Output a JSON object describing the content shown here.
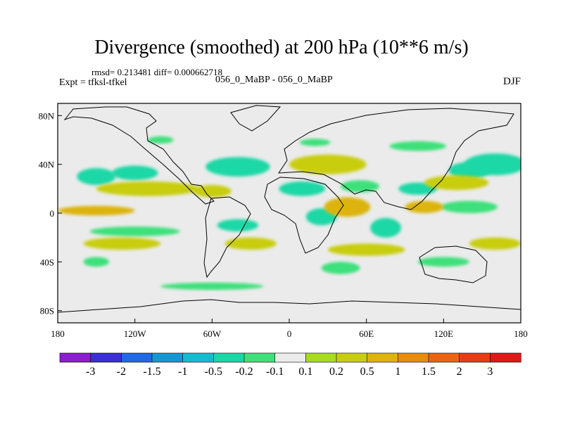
{
  "header": {
    "title": "Divergence (smoothed) at 200 hPa (10**6 m/s)",
    "stats": "rmsd= 0.213481 diff= 0.000662718",
    "expt": "Expt = tfksl-tfkel",
    "case": "056_0_MaBP - 056_0_MaBP",
    "season": "DJF"
  },
  "chart_data": {
    "type": "heatmap",
    "title": "Divergence (smoothed) at 200 hPa (10**6 m/s)",
    "xlabel": "",
    "ylabel": "",
    "xlim": [
      -180,
      180
    ],
    "ylim": [
      -90,
      90
    ],
    "x_ticks": [
      {
        "value": -180,
        "label": "180"
      },
      {
        "value": -120,
        "label": "120W"
      },
      {
        "value": -60,
        "label": "60W"
      },
      {
        "value": 0,
        "label": "0"
      },
      {
        "value": 60,
        "label": "60E"
      },
      {
        "value": 120,
        "label": "120E"
      },
      {
        "value": 180,
        "label": "180"
      }
    ],
    "y_ticks": [
      {
        "value": 80,
        "label": "80N"
      },
      {
        "value": 40,
        "label": "40N"
      },
      {
        "value": 0,
        "label": "0"
      },
      {
        "value": -40,
        "label": "40S"
      },
      {
        "value": -80,
        "label": "80S"
      }
    ],
    "colorbar": {
      "labels": [
        "-3",
        "-2",
        "-1.5",
        "-1",
        "-0.5",
        "-0.2",
        "-0.1",
        "0.1",
        "0.2",
        "0.5",
        "1",
        "1.5",
        "2",
        "3"
      ],
      "colors": [
        "#8c1ed2",
        "#3a2fd8",
        "#2068e8",
        "#1597d6",
        "#14bcd0",
        "#1ad7a6",
        "#3ee07a",
        "#ebebeb",
        "#a8dc1e",
        "#c8cd10",
        "#dcb40c",
        "#e88c0a",
        "#ec6410",
        "#e83c14",
        "#e01818"
      ]
    },
    "blobs": [
      {
        "lon": -150,
        "lat": 30,
        "rx": 15,
        "ry": 7,
        "value": -0.5
      },
      {
        "lon": -120,
        "lat": 33,
        "rx": 18,
        "ry": 6,
        "value": -0.3
      },
      {
        "lon": -100,
        "lat": 60,
        "rx": 10,
        "ry": 3,
        "value": -0.2
      },
      {
        "lon": -40,
        "lat": 38,
        "rx": 25,
        "ry": 8,
        "value": -0.3
      },
      {
        "lon": 20,
        "lat": 58,
        "rx": 12,
        "ry": 3,
        "value": -0.2
      },
      {
        "lon": 100,
        "lat": 55,
        "rx": 22,
        "ry": 4,
        "value": -0.2
      },
      {
        "lon": 160,
        "lat": 40,
        "rx": 24,
        "ry": 9,
        "value": -0.5
      },
      {
        "lon": 140,
        "lat": 35,
        "rx": 16,
        "ry": 7,
        "value": -0.3
      },
      {
        "lon": 10,
        "lat": 20,
        "rx": 18,
        "ry": 6,
        "value": -0.3
      },
      {
        "lon": 55,
        "lat": 22,
        "rx": 15,
        "ry": 5,
        "value": -0.2
      },
      {
        "lon": 100,
        "lat": 20,
        "rx": 15,
        "ry": 5,
        "value": -0.3
      },
      {
        "lon": 140,
        "lat": 5,
        "rx": 22,
        "ry": 5,
        "value": -0.2
      },
      {
        "lon": 25,
        "lat": -3,
        "rx": 12,
        "ry": 7,
        "value": -0.5
      },
      {
        "lon": 75,
        "lat": -12,
        "rx": 12,
        "ry": 8,
        "value": -0.5
      },
      {
        "lon": -120,
        "lat": -15,
        "rx": 35,
        "ry": 4,
        "value": -0.2
      },
      {
        "lon": -40,
        "lat": -10,
        "rx": 16,
        "ry": 5,
        "value": -0.3
      },
      {
        "lon": -150,
        "lat": -40,
        "rx": 10,
        "ry": 4,
        "value": -0.2
      },
      {
        "lon": -60,
        "lat": -60,
        "rx": 40,
        "ry": 3,
        "value": -0.2
      },
      {
        "lon": 40,
        "lat": -45,
        "rx": 15,
        "ry": 5,
        "value": -0.2
      },
      {
        "lon": 120,
        "lat": -40,
        "rx": 20,
        "ry": 4,
        "value": -0.2
      },
      {
        "lon": -110,
        "lat": 20,
        "rx": 40,
        "ry": 6,
        "value": 0.4
      },
      {
        "lon": -60,
        "lat": 18,
        "rx": 15,
        "ry": 5,
        "value": 0.3
      },
      {
        "lon": 30,
        "lat": 40,
        "rx": 30,
        "ry": 8,
        "value": 0.3
      },
      {
        "lon": 130,
        "lat": 25,
        "rx": 25,
        "ry": 6,
        "value": 0.3
      },
      {
        "lon": -150,
        "lat": 2,
        "rx": 30,
        "ry": 4,
        "value": 0.5
      },
      {
        "lon": 45,
        "lat": 5,
        "rx": 18,
        "ry": 8,
        "value": 0.5
      },
      {
        "lon": 105,
        "lat": 5,
        "rx": 15,
        "ry": 5,
        "value": 0.8
      },
      {
        "lon": -130,
        "lat": -25,
        "rx": 30,
        "ry": 5,
        "value": 0.3
      },
      {
        "lon": -30,
        "lat": -25,
        "rx": 20,
        "ry": 5,
        "value": 0.3
      },
      {
        "lon": 60,
        "lat": -30,
        "rx": 30,
        "ry": 5,
        "value": 0.3
      },
      {
        "lon": 160,
        "lat": -25,
        "rx": 20,
        "ry": 5,
        "value": 0.3
      }
    ]
  }
}
